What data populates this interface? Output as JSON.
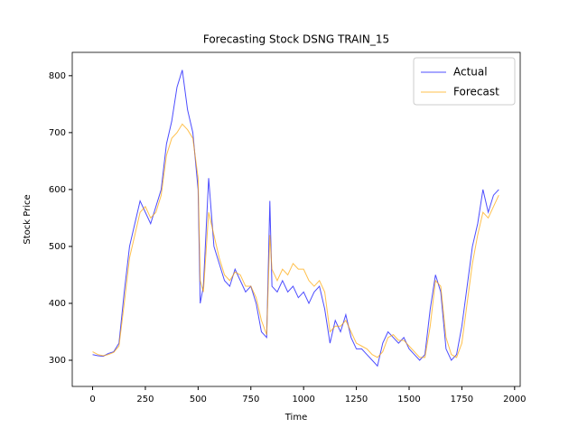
{
  "chart_data": {
    "type": "line",
    "title": "Forecasting Stock DSNG TRAIN_15",
    "xlabel": "Time",
    "ylabel": "Stock Price",
    "x": [
      0,
      25,
      50,
      75,
      100,
      125,
      150,
      175,
      200,
      225,
      250,
      275,
      300,
      325,
      350,
      375,
      400,
      425,
      450,
      475,
      500,
      510,
      525,
      550,
      575,
      600,
      625,
      650,
      675,
      700,
      725,
      750,
      775,
      800,
      825,
      840,
      850,
      875,
      900,
      925,
      950,
      975,
      1000,
      1025,
      1050,
      1075,
      1100,
      1125,
      1150,
      1175,
      1200,
      1225,
      1250,
      1275,
      1300,
      1325,
      1350,
      1375,
      1400,
      1425,
      1450,
      1475,
      1500,
      1525,
      1550,
      1575,
      1600,
      1625,
      1650,
      1675,
      1700,
      1725,
      1750,
      1775,
      1800,
      1825,
      1850,
      1875,
      1900,
      1925
    ],
    "series": [
      {
        "name": "Actual",
        "color": "#0000ff",
        "values": [
          310,
          308,
          307,
          312,
          315,
          330,
          420,
          500,
          540,
          580,
          560,
          540,
          570,
          600,
          680,
          720,
          780,
          810,
          740,
          700,
          600,
          400,
          430,
          620,
          500,
          470,
          440,
          430,
          460,
          440,
          420,
          430,
          400,
          350,
          340,
          580,
          430,
          420,
          440,
          420,
          430,
          410,
          420,
          400,
          420,
          430,
          390,
          330,
          370,
          350,
          380,
          340,
          320,
          320,
          310,
          300,
          290,
          330,
          350,
          340,
          330,
          340,
          320,
          310,
          300,
          310,
          390,
          450,
          420,
          320,
          300,
          310,
          360,
          430,
          500,
          540,
          600,
          560,
          590,
          600
        ]
      },
      {
        "name": "Forecast",
        "color": "#ffa500",
        "values": [
          315,
          310,
          308,
          310,
          314,
          325,
          400,
          480,
          520,
          560,
          570,
          550,
          560,
          590,
          660,
          690,
          700,
          715,
          705,
          690,
          620,
          440,
          420,
          560,
          520,
          480,
          450,
          440,
          455,
          450,
          430,
          430,
          410,
          370,
          345,
          520,
          460,
          440,
          460,
          450,
          470,
          460,
          460,
          440,
          430,
          440,
          420,
          350,
          360,
          360,
          370,
          350,
          330,
          325,
          320,
          310,
          305,
          315,
          340,
          345,
          335,
          335,
          325,
          315,
          305,
          305,
          360,
          440,
          430,
          340,
          310,
          305,
          330,
          400,
          470,
          520,
          560,
          550,
          570,
          590
        ]
      }
    ],
    "xlim": [
      -96.5,
      2026.5
    ],
    "ylim": [
      254,
      841
    ],
    "xticks": [
      0,
      250,
      500,
      750,
      1000,
      1250,
      1500,
      1750,
      2000
    ],
    "yticks": [
      300,
      400,
      500,
      600,
      700,
      800
    ],
    "legend": "upper right"
  }
}
